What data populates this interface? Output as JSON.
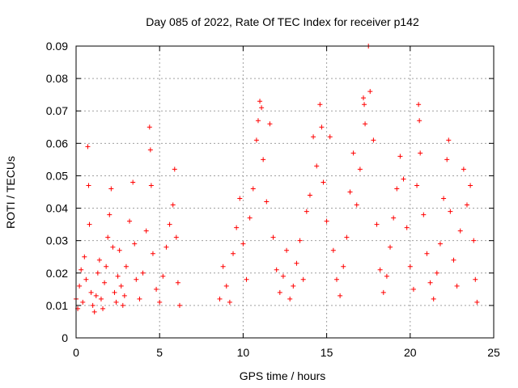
{
  "chart_data": {
    "type": "scatter",
    "title": "Day 085 of 2022, Rate Of TEC Index for receiver p142",
    "xlabel": "GPS time / hours",
    "ylabel": "ROTI / TECUs",
    "xlim": [
      0,
      25
    ],
    "ylim": [
      0,
      0.09
    ],
    "xticks": [
      0,
      5,
      10,
      15,
      20,
      25
    ],
    "xtick_labels": [
      "0",
      "5",
      "10",
      "15",
      "20",
      "25"
    ],
    "yticks": [
      0,
      0.01,
      0.02,
      0.03,
      0.04,
      0.05,
      0.06,
      0.07,
      0.08,
      0.09
    ],
    "ytick_labels": [
      "0",
      "0.01",
      "0.02",
      "0.03",
      "0.04",
      "0.05",
      "0.06",
      "0.07",
      "0.08",
      "0.09"
    ],
    "grid": true,
    "marker": "+",
    "color": "#ff0000",
    "series": [
      {
        "points": [
          [
            0.0,
            0.012
          ],
          [
            0.1,
            0.009
          ],
          [
            0.2,
            0.016
          ],
          [
            0.3,
            0.021
          ],
          [
            0.4,
            0.011
          ],
          [
            0.5,
            0.025
          ],
          [
            0.6,
            0.018
          ],
          [
            0.7,
            0.059
          ],
          [
            0.75,
            0.047
          ],
          [
            0.8,
            0.035
          ],
          [
            0.9,
            0.014
          ],
          [
            1.0,
            0.01
          ],
          [
            1.1,
            0.008
          ],
          [
            1.2,
            0.013
          ],
          [
            1.3,
            0.02
          ],
          [
            1.4,
            0.024
          ],
          [
            1.5,
            0.012
          ],
          [
            1.6,
            0.009
          ],
          [
            1.7,
            0.017
          ],
          [
            1.8,
            0.022
          ],
          [
            1.9,
            0.031
          ],
          [
            2.0,
            0.038
          ],
          [
            2.1,
            0.046
          ],
          [
            2.2,
            0.028
          ],
          [
            2.3,
            0.014
          ],
          [
            2.4,
            0.011
          ],
          [
            2.5,
            0.019
          ],
          [
            2.6,
            0.027
          ],
          [
            2.7,
            0.016
          ],
          [
            2.8,
            0.01
          ],
          [
            2.9,
            0.013
          ],
          [
            3.0,
            0.022
          ],
          [
            3.2,
            0.036
          ],
          [
            3.4,
            0.048
          ],
          [
            3.5,
            0.029
          ],
          [
            3.6,
            0.018
          ],
          [
            3.8,
            0.012
          ],
          [
            4.0,
            0.02
          ],
          [
            4.2,
            0.033
          ],
          [
            4.4,
            0.065
          ],
          [
            4.45,
            0.058
          ],
          [
            4.5,
            0.047
          ],
          [
            4.6,
            0.026
          ],
          [
            4.8,
            0.015
          ],
          [
            5.0,
            0.011
          ],
          [
            5.2,
            0.019
          ],
          [
            5.4,
            0.028
          ],
          [
            5.6,
            0.035
          ],
          [
            5.8,
            0.041
          ],
          [
            5.9,
            0.052
          ],
          [
            6.0,
            0.031
          ],
          [
            6.1,
            0.017
          ],
          [
            6.2,
            0.01
          ],
          [
            8.6,
            0.012
          ],
          [
            8.8,
            0.022
          ],
          [
            9.0,
            0.016
          ],
          [
            9.2,
            0.011
          ],
          [
            9.4,
            0.026
          ],
          [
            9.6,
            0.034
          ],
          [
            9.8,
            0.043
          ],
          [
            10.0,
            0.029
          ],
          [
            10.2,
            0.018
          ],
          [
            10.4,
            0.037
          ],
          [
            10.6,
            0.046
          ],
          [
            10.8,
            0.061
          ],
          [
            10.9,
            0.067
          ],
          [
            11.0,
            0.073
          ],
          [
            11.1,
            0.071
          ],
          [
            11.2,
            0.055
          ],
          [
            11.4,
            0.042
          ],
          [
            11.6,
            0.066
          ],
          [
            11.8,
            0.031
          ],
          [
            12.0,
            0.021
          ],
          [
            12.2,
            0.014
          ],
          [
            12.4,
            0.019
          ],
          [
            12.6,
            0.027
          ],
          [
            12.8,
            0.012
          ],
          [
            13.0,
            0.016
          ],
          [
            13.2,
            0.023
          ],
          [
            13.4,
            0.03
          ],
          [
            13.6,
            0.018
          ],
          [
            13.8,
            0.039
          ],
          [
            14.0,
            0.044
          ],
          [
            14.2,
            0.062
          ],
          [
            14.4,
            0.053
          ],
          [
            14.6,
            0.072
          ],
          [
            14.7,
            0.065
          ],
          [
            14.8,
            0.048
          ],
          [
            15.0,
            0.036
          ],
          [
            15.2,
            0.062
          ],
          [
            15.4,
            0.027
          ],
          [
            15.6,
            0.018
          ],
          [
            15.8,
            0.013
          ],
          [
            16.0,
            0.022
          ],
          [
            16.2,
            0.031
          ],
          [
            16.4,
            0.045
          ],
          [
            16.6,
            0.057
          ],
          [
            16.8,
            0.041
          ],
          [
            17.0,
            0.052
          ],
          [
            17.2,
            0.074
          ],
          [
            17.25,
            0.072
          ],
          [
            17.3,
            0.066
          ],
          [
            17.5,
            0.09
          ],
          [
            17.6,
            0.076
          ],
          [
            17.8,
            0.061
          ],
          [
            18.0,
            0.035
          ],
          [
            18.2,
            0.021
          ],
          [
            18.4,
            0.014
          ],
          [
            18.6,
            0.019
          ],
          [
            18.8,
            0.028
          ],
          [
            19.0,
            0.037
          ],
          [
            19.2,
            0.046
          ],
          [
            19.4,
            0.056
          ],
          [
            19.6,
            0.049
          ],
          [
            19.8,
            0.034
          ],
          [
            20.0,
            0.022
          ],
          [
            20.2,
            0.015
          ],
          [
            20.4,
            0.047
          ],
          [
            20.5,
            0.072
          ],
          [
            20.55,
            0.067
          ],
          [
            20.6,
            0.057
          ],
          [
            20.8,
            0.038
          ],
          [
            21.0,
            0.026
          ],
          [
            21.2,
            0.017
          ],
          [
            21.4,
            0.012
          ],
          [
            21.6,
            0.02
          ],
          [
            21.8,
            0.029
          ],
          [
            22.0,
            0.043
          ],
          [
            22.2,
            0.055
          ],
          [
            22.3,
            0.061
          ],
          [
            22.4,
            0.039
          ],
          [
            22.6,
            0.024
          ],
          [
            22.8,
            0.016
          ],
          [
            23.0,
            0.033
          ],
          [
            23.2,
            0.052
          ],
          [
            23.4,
            0.041
          ],
          [
            23.6,
            0.047
          ],
          [
            23.8,
            0.03
          ],
          [
            23.9,
            0.018
          ],
          [
            24.0,
            0.011
          ]
        ]
      }
    ]
  }
}
